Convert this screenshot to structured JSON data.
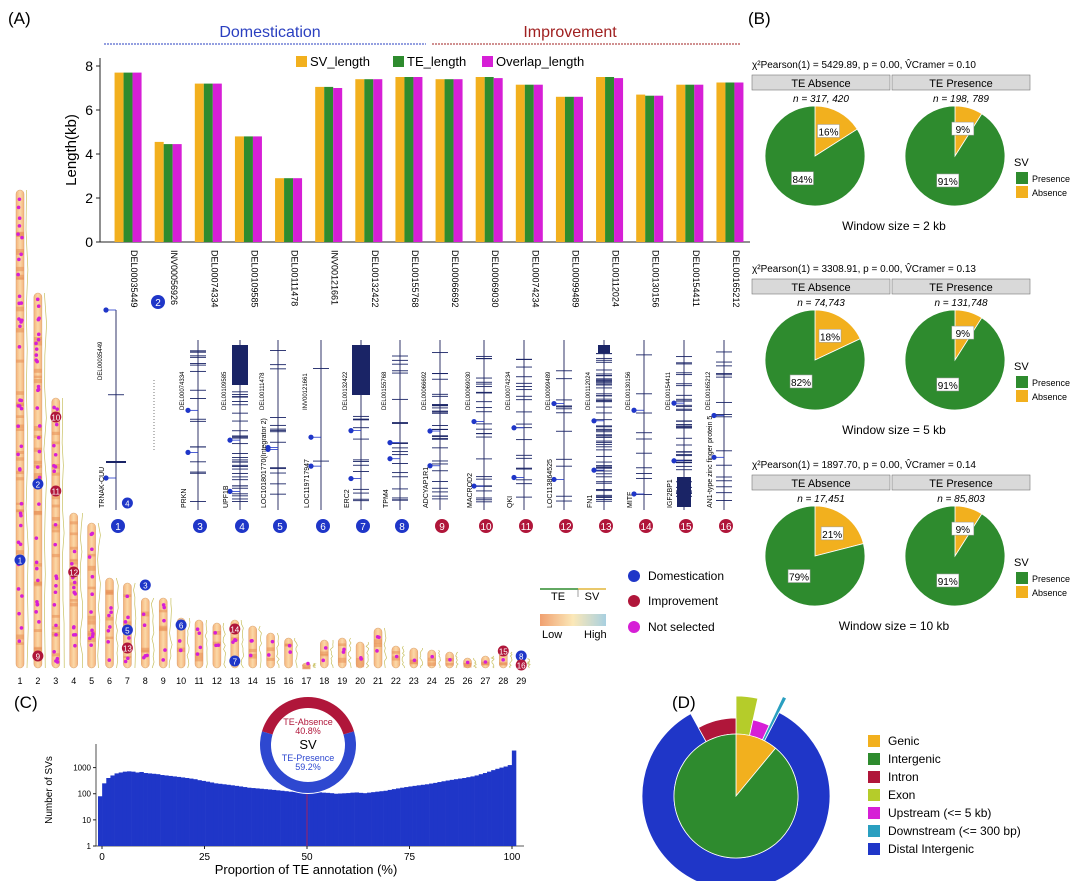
{
  "panels": {
    "a": "(A)",
    "b": "(B)",
    "c": "(C)",
    "d": "(D)"
  },
  "colors": {
    "sv": "#f2b01e",
    "te": "#2e8b2e",
    "overlap": "#d61fd6",
    "blue": "#1f36c8",
    "red": "#b0163a",
    "magenta": "#d61fd6",
    "dom_title": "#2a3fc0",
    "imp_title": "#a02020"
  },
  "chart_data": [
    {
      "type": "bar",
      "panel": "A",
      "group_labels": {
        "domestication": "Domestication",
        "improvement": "Improvement"
      },
      "ylabel": "Length(kb)",
      "ylim": [
        0,
        8
      ],
      "yticks": [
        "0",
        "2",
        "4",
        "6",
        "8"
      ],
      "categories": [
        "DEL00035449",
        "INV00056926",
        "DEL00074334",
        "DEL00109585",
        "DEL00111478",
        "INV00121661",
        "DEL00132422",
        "DEL00155768",
        "DEL00066692",
        "DEL00069030",
        "DEL00074234",
        "DEL00099489",
        "DEL00112024",
        "DEL00130156",
        "DEL00154411",
        "DEL00165212"
      ],
      "series": [
        {
          "name": "SV_length",
          "values": [
            7.7,
            4.55,
            7.2,
            4.8,
            2.9,
            7.05,
            7.4,
            7.5,
            7.4,
            7.5,
            7.15,
            6.6,
            7.5,
            6.7,
            7.15,
            7.25
          ]
        },
        {
          "name": "TE_length",
          "values": [
            7.7,
            4.45,
            7.2,
            4.8,
            2.9,
            7.05,
            7.4,
            7.5,
            7.4,
            7.5,
            7.15,
            6.6,
            7.5,
            6.65,
            7.15,
            7.25
          ]
        },
        {
          "name": "Overlap_length",
          "values": [
            7.7,
            4.45,
            7.2,
            4.8,
            2.9,
            7.0,
            7.4,
            7.5,
            7.4,
            7.45,
            7.15,
            6.6,
            7.45,
            6.65,
            7.15,
            7.25
          ]
        }
      ]
    },
    {
      "type": "pie",
      "panel": "B",
      "window_label": "Window size = 2 kb",
      "stat_text": "χ²Pearson(1) = 5429.89, p = 0.00, V̂Cramer = 0.10",
      "facets": [
        {
          "name": "TE Absence",
          "n": "n = 317, 420",
          "slices": [
            {
              "label": "Presence",
              "value": 84,
              "text": "84%"
            },
            {
              "label": "Absence",
              "value": 16,
              "text": "16%"
            }
          ]
        },
        {
          "name": "TE Presence",
          "n": "n = 198, 789",
          "slices": [
            {
              "label": "Presence",
              "value": 91,
              "text": "91%"
            },
            {
              "label": "Absence",
              "value": 9,
              "text": "9%"
            }
          ]
        }
      ]
    },
    {
      "type": "pie",
      "panel": "B",
      "window_label": "Window size = 5 kb",
      "stat_text": "χ²Pearson(1) = 3308.91, p = 0.00, V̂Cramer = 0.13",
      "facets": [
        {
          "name": "TE Absence",
          "n": "n = 74,743",
          "slices": [
            {
              "label": "Presence",
              "value": 82,
              "text": "82%"
            },
            {
              "label": "Absence",
              "value": 18,
              "text": "18%"
            }
          ]
        },
        {
          "name": "TE Presence",
          "n": "n = 131,748",
          "slices": [
            {
              "label": "Presence",
              "value": 91,
              "text": "91%"
            },
            {
              "label": "Absence",
              "value": 9,
              "text": "9%"
            }
          ]
        }
      ]
    },
    {
      "type": "pie",
      "panel": "B",
      "window_label": "Window size = 10 kb",
      "stat_text": "χ²Pearson(1) = 1897.70, p = 0.00, V̂Cramer = 0.14",
      "facets": [
        {
          "name": "TE Absence",
          "n": "n = 17,451",
          "slices": [
            {
              "label": "Presence",
              "value": 79,
              "text": "79%"
            },
            {
              "label": "Absence",
              "value": 21,
              "text": "21%"
            }
          ]
        },
        {
          "name": "TE Presence",
          "n": "n = 85,803",
          "slices": [
            {
              "label": "Presence",
              "value": 91,
              "text": "91%"
            },
            {
              "label": "Absence",
              "value": 9,
              "text": "9%"
            }
          ]
        }
      ]
    },
    {
      "type": "bar",
      "panel": "C",
      "xlabel": "Proportion of TE annotation (%)",
      "ylabel": "Number of SVs",
      "xticks": [
        "0",
        "25",
        "50",
        "75",
        "100"
      ],
      "yticks": [
        "1",
        "10",
        "100",
        "1000"
      ],
      "scale": "log10",
      "x": [
        0,
        1,
        2,
        3,
        4,
        5,
        6,
        7,
        8,
        9,
        10,
        11,
        12,
        13,
        14,
        15,
        16,
        17,
        18,
        19,
        20,
        21,
        22,
        23,
        24,
        25,
        26,
        27,
        28,
        29,
        30,
        31,
        32,
        33,
        34,
        35,
        36,
        37,
        38,
        39,
        40,
        41,
        42,
        43,
        44,
        45,
        46,
        47,
        48,
        49,
        50,
        51,
        52,
        53,
        54,
        55,
        56,
        57,
        58,
        59,
        60,
        61,
        62,
        63,
        64,
        65,
        66,
        67,
        68,
        69,
        70,
        71,
        72,
        73,
        74,
        75,
        76,
        77,
        78,
        79,
        80,
        81,
        82,
        83,
        84,
        85,
        86,
        87,
        88,
        89,
        90,
        91,
        92,
        93,
        94,
        95,
        96,
        97,
        98,
        99,
        100
      ],
      "values": [
        80,
        250,
        400,
        500,
        600,
        650,
        700,
        720,
        700,
        650,
        680,
        620,
        600,
        580,
        560,
        520,
        500,
        480,
        460,
        440,
        420,
        400,
        380,
        360,
        330,
        310,
        290,
        270,
        250,
        240,
        230,
        220,
        210,
        200,
        190,
        180,
        170,
        165,
        160,
        155,
        150,
        145,
        140,
        135,
        130,
        125,
        120,
        118,
        115,
        112,
        100,
        110,
        112,
        115,
        110,
        108,
        105,
        100,
        102,
        104,
        106,
        110,
        112,
        108,
        105,
        110,
        115,
        120,
        125,
        130,
        140,
        150,
        160,
        170,
        180,
        190,
        200,
        210,
        220,
        230,
        245,
        260,
        280,
        300,
        320,
        340,
        360,
        380,
        400,
        430,
        460,
        500,
        560,
        620,
        700,
        800,
        900,
        1000,
        1100,
        1250,
        4500
      ],
      "donut": {
        "slices": [
          {
            "label": "TE-Absence",
            "value": 40.8,
            "text": "40.8%"
          },
          {
            "label": "TE-Presence",
            "value": 59.2,
            "text": "59.2%"
          }
        ],
        "center": "SV"
      }
    },
    {
      "type": "pie",
      "panel": "D",
      "legend": [
        "Genic",
        "Intergenic",
        "Intron",
        "Exon",
        "Upstream (<= 5 kb)",
        "Downstream (<= 300 bp)",
        "Distal Intergenic"
      ],
      "inner": [
        {
          "label": "Genic",
          "value": 11
        },
        {
          "label": "Intergenic",
          "value": 89
        }
      ],
      "outer": [
        {
          "label": "Exon",
          "value": 3.5
        },
        {
          "label": "Upstream (<= 5 kb)",
          "value": 3.5
        },
        {
          "label": "Downstream (<= 300 bp)",
          "value": 0.6
        },
        {
          "label": "Distal Intergenic",
          "value": 84.4
        },
        {
          "label": "Intron",
          "value": 8
        }
      ]
    }
  ],
  "legend_a": {
    "sv": "SV_length",
    "te": "TE_length",
    "overlap": "Overlap_length"
  },
  "gene_tracks": [
    {
      "id": "DEL00035449",
      "gene": "TRNAK-CUU",
      "num": "1",
      "group": "dom"
    },
    {
      "id": "DEL00074334",
      "gene": "PRKN",
      "num": "3",
      "group": "dom"
    },
    {
      "id": "DEL00109585",
      "gene": "UPF1B",
      "num": "4",
      "group": "dom"
    },
    {
      "id": "DEL00111478",
      "gene": "LOC101801770(Integrator 2)",
      "num": "5",
      "group": "dom"
    },
    {
      "id": "INV00121661",
      "gene": "LOC119717947",
      "num": "6",
      "group": "dom"
    },
    {
      "id": "DEL00132422",
      "gene": "ERC2",
      "num": "7",
      "group": "dom"
    },
    {
      "id": "DEL00155768",
      "gene": "TPM4",
      "num": "8",
      "group": "dom"
    },
    {
      "id": "DEL00066692",
      "gene": "ADCYAP1R1",
      "num": "9",
      "group": "imp"
    },
    {
      "id": "DEL00069030",
      "gene": "MACROD2",
      "num": "10",
      "group": "imp"
    },
    {
      "id": "DEL00074234",
      "gene": "QKI",
      "num": "11",
      "group": "imp"
    },
    {
      "id": "DEL00099489",
      "gene": "LOC113864525",
      "num": "12",
      "group": "imp"
    },
    {
      "id": "DEL00112024",
      "gene": "FN1",
      "num": "13",
      "group": "imp"
    },
    {
      "id": "DEL00130156",
      "gene": "MITF",
      "num": "14",
      "group": "imp"
    },
    {
      "id": "DEL00154411",
      "gene": "IGF2BP1",
      "num": "15",
      "group": "imp"
    },
    {
      "id": "DEL00165212",
      "gene": "AN1-type zinc finger protein 5",
      "num": "16",
      "group": "imp"
    }
  ],
  "inv_marker": "2",
  "chromosomes": [
    "1",
    "2",
    "3",
    "4",
    "5",
    "6",
    "7",
    "8",
    "9",
    "10",
    "11",
    "12",
    "13",
    "14",
    "15",
    "16",
    "17",
    "18",
    "19",
    "20",
    "21",
    "22",
    "23",
    "24",
    "25",
    "26",
    "27",
    "28",
    "29"
  ],
  "legend_points": {
    "domestication": "Domestication",
    "improvement": "Improvement",
    "not_selected": "Not selected"
  },
  "legend_lines": {
    "te": "TE",
    "sv": "SV"
  },
  "legend_gradient": {
    "low": "Low",
    "high": "High"
  },
  "pie_legend": {
    "title": "SV",
    "presence": "Presence",
    "absence": "Absence"
  },
  "d_colors": {
    "Genic": "#f2b01e",
    "Intergenic": "#2e8b2e",
    "Intron": "#b0163a",
    "Exon": "#b5cc2a",
    "Upstream (<= 5 kb)": "#d61fd6",
    "Downstream (<= 300 bp)": "#2a9fc0",
    "Distal Intergenic": "#1f36c8"
  }
}
